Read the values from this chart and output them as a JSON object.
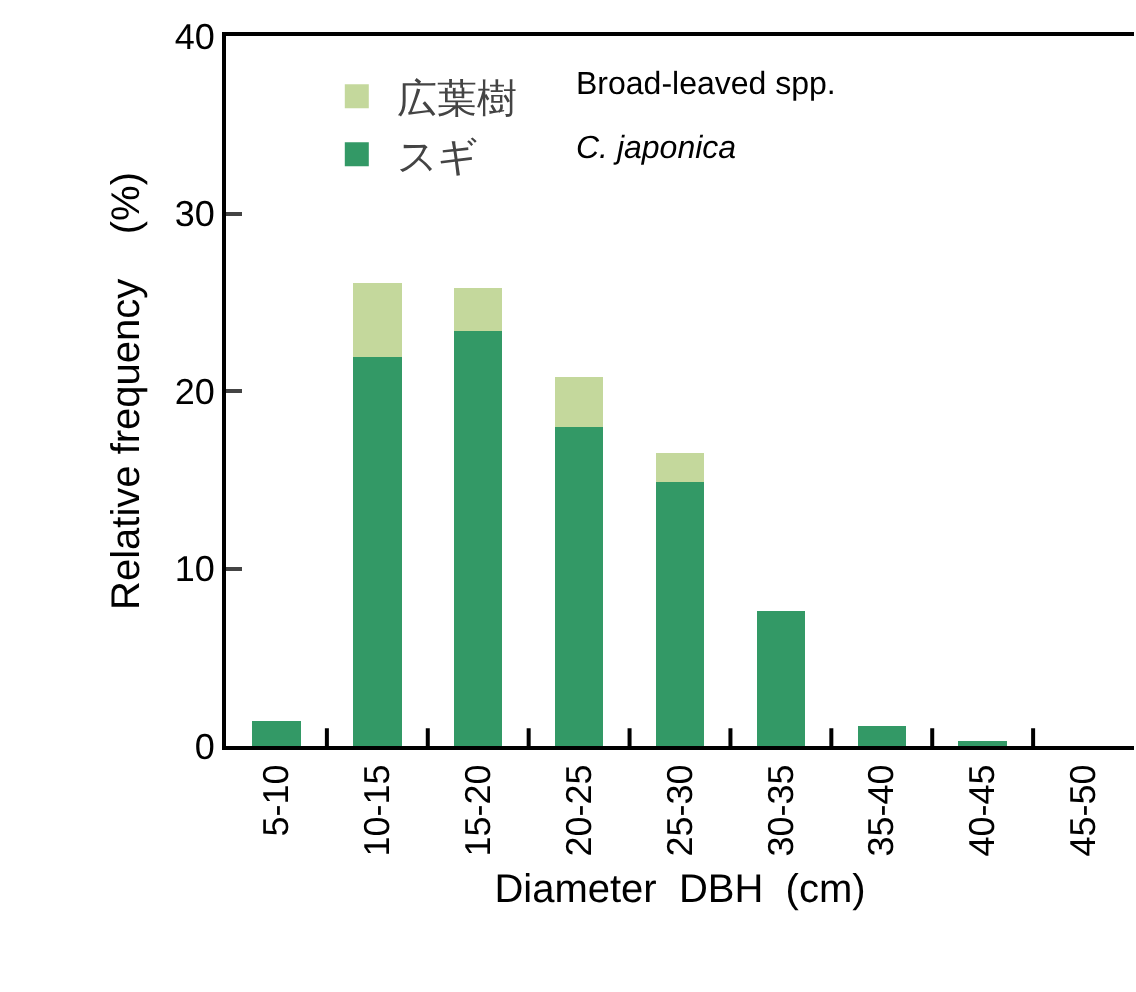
{
  "chart_data": {
    "type": "bar",
    "stacked": true,
    "xlabel": "Diameter  DBH  (cm)",
    "ylabel": "Relative frequency    (%)",
    "categories": [
      "5-10",
      "10-15",
      "15-20",
      "20-25",
      "25-30",
      "30-35",
      "35-40",
      "40-45",
      "45-50"
    ],
    "series": [
      {
        "name": "スギ",
        "color": "#339966",
        "values": [
          1.4,
          21.9,
          23.4,
          18.0,
          14.9,
          7.6,
          1.1,
          0.3,
          0
        ]
      },
      {
        "name": "広葉樹",
        "color": "#c4d89c",
        "values": [
          null,
          4.2,
          2.4,
          2.8,
          1.6,
          null,
          null,
          null,
          null
        ]
      }
    ],
    "annotations": [
      "Broad-leaved spp.",
      "C. japonica"
    ],
    "ylim": [
      0,
      40
    ],
    "yticks": [
      0,
      10,
      20,
      30,
      40
    ],
    "grid": false,
    "legend": "top left"
  }
}
